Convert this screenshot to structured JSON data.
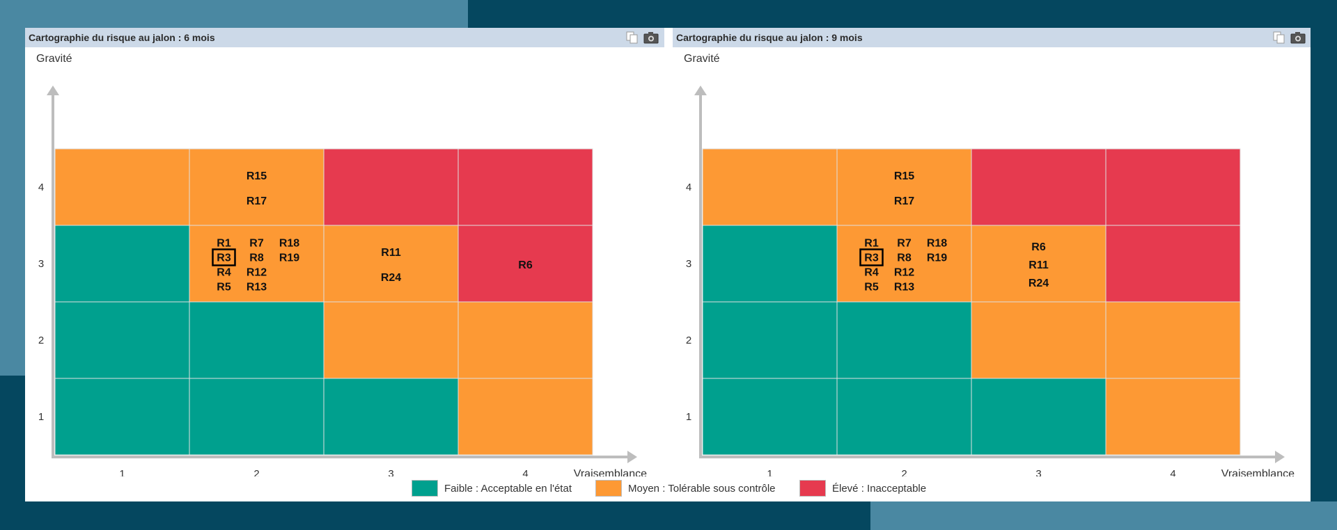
{
  "colors": {
    "faible": "#00a08e",
    "moyen": "#fd9934",
    "eleve": "#e63a4f",
    "grid_line": "#e0e0e0",
    "axis": "#bdbdbd"
  },
  "icons": [
    "copy-icon",
    "camera-icon"
  ],
  "legend": [
    {
      "key": "faible",
      "label": "Faible : Acceptable en l'état"
    },
    {
      "key": "moyen",
      "label": "Moyen : Tolérable sous contrôle"
    },
    {
      "key": "eleve",
      "label": "Élevé : Inacceptable"
    }
  ],
  "chart_data": [
    {
      "type": "heatmap",
      "title": "Cartographie du risque au jalon : 6 mois",
      "ylabel": "Gravité",
      "xlabel": "Vraisemblance",
      "x_ticks": [
        "1",
        "2",
        "3",
        "4"
      ],
      "y_ticks": [
        "1",
        "2",
        "3",
        "4"
      ],
      "levels": [
        [
          "faible",
          "faible",
          "faible",
          "moyen"
        ],
        [
          "faible",
          "faible",
          "moyen",
          "moyen"
        ],
        [
          "faible",
          "moyen",
          "moyen",
          "eleve"
        ],
        [
          "moyen",
          "moyen",
          "eleve",
          "eleve"
        ]
      ],
      "highlighted": [
        "R3"
      ],
      "cells": [
        {
          "x": 2,
          "y": 4,
          "layout": "rows",
          "risks": [
            "R15",
            "R17"
          ]
        },
        {
          "x": 2,
          "y": 3,
          "layout": "columns",
          "risks": [
            [
              "R1",
              "R3",
              "R4",
              "R5"
            ],
            [
              "R7",
              "R8",
              "R12",
              "R13"
            ],
            [
              "R18",
              "R19"
            ]
          ]
        },
        {
          "x": 3,
          "y": 3,
          "layout": "rows",
          "risks": [
            "R11",
            "R24"
          ]
        },
        {
          "x": 4,
          "y": 3,
          "layout": "rows",
          "risks": [
            "R6"
          ]
        }
      ]
    },
    {
      "type": "heatmap",
      "title": "Cartographie du risque au jalon : 9 mois",
      "ylabel": "Gravité",
      "xlabel": "Vraisemblance",
      "x_ticks": [
        "1",
        "2",
        "3",
        "4"
      ],
      "y_ticks": [
        "1",
        "2",
        "3",
        "4"
      ],
      "levels": [
        [
          "faible",
          "faible",
          "faible",
          "moyen"
        ],
        [
          "faible",
          "faible",
          "moyen",
          "moyen"
        ],
        [
          "faible",
          "moyen",
          "moyen",
          "eleve"
        ],
        [
          "moyen",
          "moyen",
          "eleve",
          "eleve"
        ]
      ],
      "highlighted": [
        "R3"
      ],
      "cells": [
        {
          "x": 2,
          "y": 4,
          "layout": "rows",
          "risks": [
            "R15",
            "R17"
          ]
        },
        {
          "x": 2,
          "y": 3,
          "layout": "columns",
          "risks": [
            [
              "R1",
              "R3",
              "R4",
              "R5"
            ],
            [
              "R7",
              "R8",
              "R12",
              "R13"
            ],
            [
              "R18",
              "R19"
            ]
          ]
        },
        {
          "x": 3,
          "y": 3,
          "layout": "rows",
          "risks": [
            "R6",
            "R11",
            "R24"
          ]
        }
      ]
    }
  ]
}
